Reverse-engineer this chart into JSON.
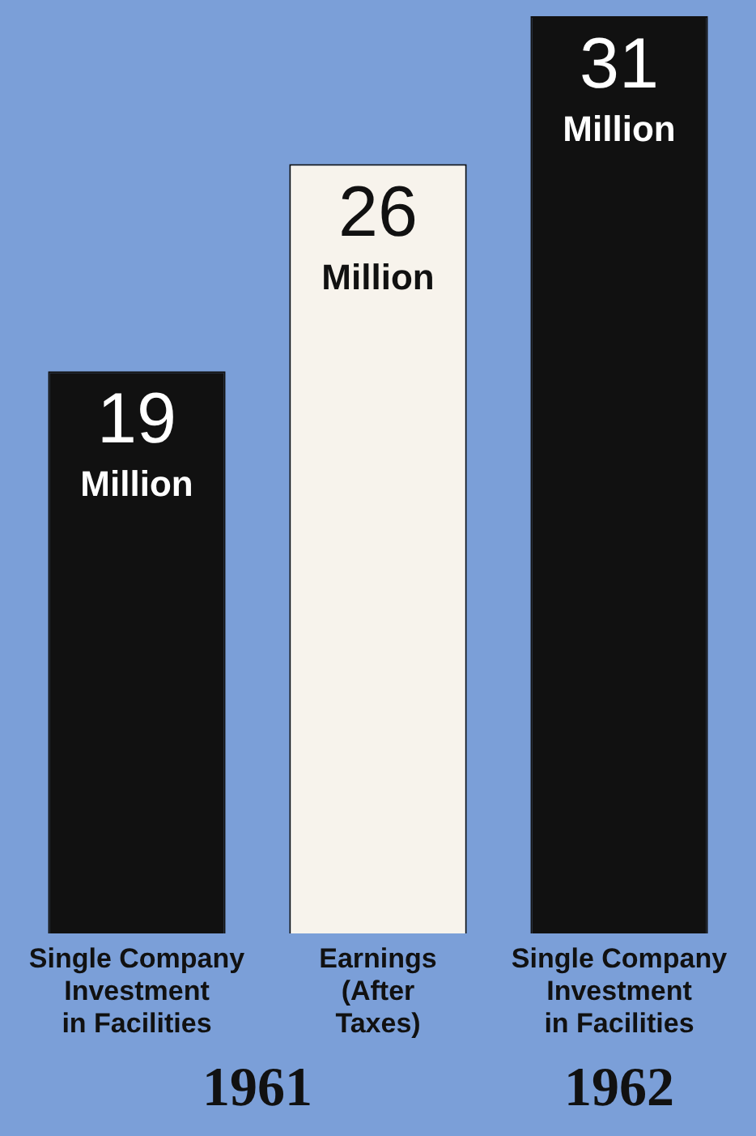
{
  "chart_data": {
    "type": "bar",
    "categories": [
      "Single Company\nInvestment\nin Facilities",
      "Earnings\n(After\nTaxes)",
      "Single Company\nInvestment\nin Facilities"
    ],
    "values": [
      19,
      26,
      31
    ],
    "colors": [
      "#111111",
      "#f7f3ec",
      "#111111"
    ],
    "value_labels": [
      "19 Million",
      "26 Million",
      "31 Million"
    ],
    "annotations": [
      "1961",
      "1962"
    ],
    "legend": false,
    "grid": false
  }
}
